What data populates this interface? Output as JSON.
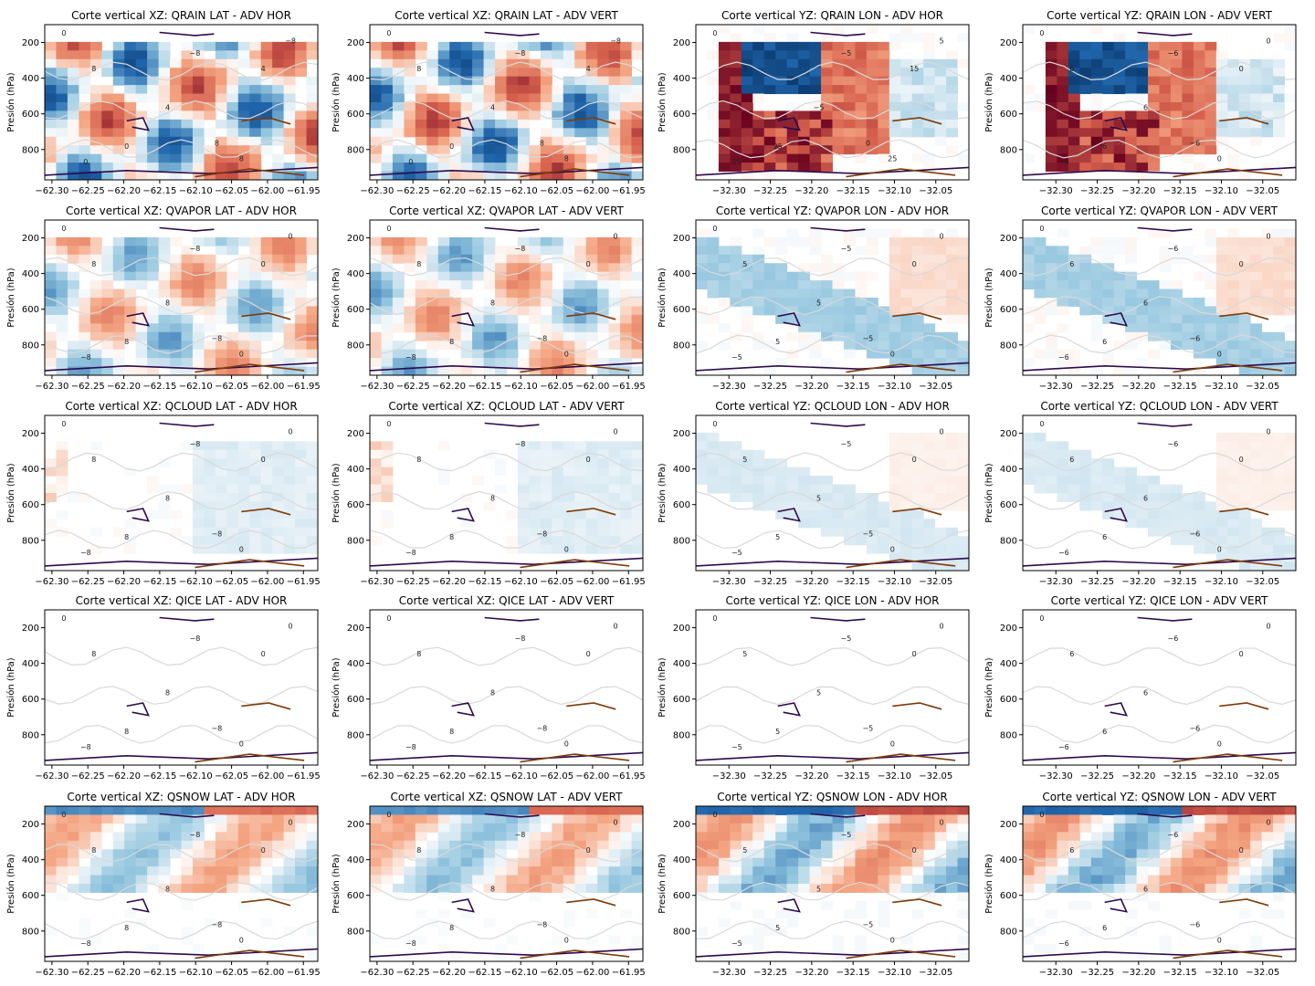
{
  "figure": {
    "rows": 5,
    "cols": 4
  },
  "colors": {
    "heatmap_cmap": "RdBu_r",
    "contour_positive": "#2d0a4e",
    "contour_negative": "#7f3b08",
    "contour_zero": "#d9d9d9",
    "axis": "#000000"
  },
  "chart_data": [
    {
      "type": "heatmap",
      "title": "Corte vertical XZ: QRAIN LAT - ADV HOR",
      "xlabel": "",
      "ylabel": "Presión (hPa)",
      "xlim": [
        -62.31,
        -61.93
      ],
      "ylim": [
        970,
        100
      ],
      "x_ticks": [
        "−62.30",
        "−62.25",
        "−62.20",
        "−62.15",
        "−62.10",
        "−62.05",
        "−62.00",
        "−61.95"
      ],
      "y_ticks": [
        "200",
        "400",
        "600",
        "800"
      ],
      "intensity": 0.9,
      "pattern": "mixed",
      "contours": [
        "0",
        "8",
        "−8",
        "4"
      ],
      "grid": false
    },
    {
      "type": "heatmap",
      "title": "Corte vertical XZ: QRAIN LAT - ADV VERT",
      "xlabel": "",
      "ylabel": "Presión (hPa)",
      "xlim": [
        -62.31,
        -61.93
      ],
      "ylim": [
        970,
        100
      ],
      "x_ticks": [
        "−62.30",
        "−62.25",
        "−62.20",
        "−62.15",
        "−62.10",
        "−62.05",
        "−62.00",
        "−61.95"
      ],
      "y_ticks": [
        "200",
        "400",
        "600",
        "800"
      ],
      "intensity": 0.9,
      "pattern": "mixed",
      "contours": [
        "0",
        "8",
        "−8",
        "4"
      ],
      "grid": false
    },
    {
      "type": "heatmap",
      "title": "Corte vertical YZ: QRAIN LON - ADV HOR",
      "xlabel": "",
      "ylabel": "Presión (hPa)",
      "xlim": [
        -32.34,
        -32.01
      ],
      "ylim": [
        970,
        100
      ],
      "x_ticks": [
        "−32.30",
        "−32.25",
        "−32.20",
        "−32.15",
        "−32.10",
        "−32.05"
      ],
      "y_ticks": [
        "200",
        "400",
        "600",
        "800"
      ],
      "intensity": 1.0,
      "pattern": "core",
      "contours": [
        "0",
        "5",
        "−5",
        "15",
        "25"
      ],
      "grid": false
    },
    {
      "type": "heatmap",
      "title": "Corte vertical YZ: QRAIN LON - ADV VERT",
      "xlabel": "",
      "ylabel": "Presión (hPa)",
      "xlim": [
        -32.34,
        -32.01
      ],
      "ylim": [
        970,
        100
      ],
      "x_ticks": [
        "−32.30",
        "−32.25",
        "−32.20",
        "−32.15",
        "−32.10",
        "−32.05"
      ],
      "y_ticks": [
        "200",
        "400",
        "600",
        "800"
      ],
      "intensity": 1.0,
      "pattern": "core",
      "contours": [
        "0",
        "6",
        "−6"
      ],
      "grid": false
    },
    {
      "type": "heatmap",
      "title": "Corte vertical XZ: QVAPOR LAT - ADV HOR",
      "xlabel": "",
      "ylabel": "Presión (hPa)",
      "xlim": [
        -62.31,
        -61.93
      ],
      "ylim": [
        970,
        100
      ],
      "x_ticks": [
        "−62.30",
        "−62.25",
        "−62.20",
        "−62.15",
        "−62.10",
        "−62.05",
        "−62.00",
        "−61.95"
      ],
      "y_ticks": [
        "200",
        "400",
        "600",
        "800"
      ],
      "intensity": 0.55,
      "pattern": "mixed",
      "contours": [
        "0",
        "8",
        "−8"
      ],
      "grid": false
    },
    {
      "type": "heatmap",
      "title": "Corte vertical XZ: QVAPOR LAT - ADV VERT",
      "xlabel": "",
      "ylabel": "Presión (hPa)",
      "xlim": [
        -62.31,
        -61.93
      ],
      "ylim": [
        970,
        100
      ],
      "x_ticks": [
        "−62.30",
        "−62.25",
        "−62.20",
        "−62.15",
        "−62.10",
        "−62.05",
        "−62.00",
        "−61.95"
      ],
      "y_ticks": [
        "200",
        "400",
        "600",
        "800"
      ],
      "intensity": 0.55,
      "pattern": "mixed",
      "contours": [
        "0",
        "8",
        "−8"
      ],
      "grid": false
    },
    {
      "type": "heatmap",
      "title": "Corte vertical YZ: QVAPOR LON - ADV HOR",
      "xlabel": "",
      "ylabel": "Presión (hPa)",
      "xlim": [
        -32.34,
        -32.01
      ],
      "ylim": [
        970,
        100
      ],
      "x_ticks": [
        "−32.30",
        "−32.25",
        "−32.20",
        "−32.15",
        "−32.10",
        "−32.05"
      ],
      "y_ticks": [
        "200",
        "400",
        "600",
        "800"
      ],
      "intensity": 0.5,
      "pattern": "diag",
      "contours": [
        "0",
        "5",
        "−5"
      ],
      "grid": false
    },
    {
      "type": "heatmap",
      "title": "Corte vertical YZ: QVAPOR LON - ADV VERT",
      "xlabel": "",
      "ylabel": "Presión (hPa)",
      "xlim": [
        -32.34,
        -32.01
      ],
      "ylim": [
        970,
        100
      ],
      "x_ticks": [
        "−32.30",
        "−32.25",
        "−32.20",
        "−32.15",
        "−32.10",
        "−32.05"
      ],
      "y_ticks": [
        "200",
        "400",
        "600",
        "800"
      ],
      "intensity": 0.5,
      "pattern": "diag",
      "contours": [
        "0",
        "6",
        "−6"
      ],
      "grid": false
    },
    {
      "type": "heatmap",
      "title": "Corte vertical XZ: QCLOUD LAT - ADV HOR",
      "xlabel": "",
      "ylabel": "Presión (hPa)",
      "xlim": [
        -62.31,
        -61.93
      ],
      "ylim": [
        970,
        100
      ],
      "x_ticks": [
        "−62.30",
        "−62.25",
        "−62.20",
        "−62.15",
        "−62.10",
        "−62.05",
        "−62.00",
        "−61.95"
      ],
      "y_ticks": [
        "200",
        "400",
        "600",
        "800"
      ],
      "intensity": 0.35,
      "pattern": "right",
      "contours": [
        "0",
        "8",
        "−8"
      ],
      "grid": false
    },
    {
      "type": "heatmap",
      "title": "Corte vertical XZ: QCLOUD LAT - ADV VERT",
      "xlabel": "",
      "ylabel": "Presión (hPa)",
      "xlim": [
        -62.31,
        -61.93
      ],
      "ylim": [
        970,
        100
      ],
      "x_ticks": [
        "−62.30",
        "−62.25",
        "−62.20",
        "−62.15",
        "−62.10",
        "−62.05",
        "−62.00",
        "−61.95"
      ],
      "y_ticks": [
        "200",
        "400",
        "600",
        "800"
      ],
      "intensity": 0.35,
      "pattern": "right",
      "contours": [
        "0",
        "8",
        "−8"
      ],
      "grid": false
    },
    {
      "type": "heatmap",
      "title": "Corte vertical YZ: QCLOUD LON - ADV HOR",
      "xlabel": "",
      "ylabel": "Presión (hPa)",
      "xlim": [
        -32.34,
        -32.01
      ],
      "ylim": [
        970,
        100
      ],
      "x_ticks": [
        "−32.30",
        "−32.25",
        "−32.20",
        "−32.15",
        "−32.10",
        "−32.05"
      ],
      "y_ticks": [
        "200",
        "400",
        "600",
        "800"
      ],
      "intensity": 0.25,
      "pattern": "diag",
      "contours": [
        "0",
        "5",
        "−5"
      ],
      "grid": false
    },
    {
      "type": "heatmap",
      "title": "Corte vertical YZ: QCLOUD LON - ADV VERT",
      "xlabel": "",
      "ylabel": "Presión (hPa)",
      "xlim": [
        -32.34,
        -32.01
      ],
      "ylim": [
        970,
        100
      ],
      "x_ticks": [
        "−32.30",
        "−32.25",
        "−32.20",
        "−32.15",
        "−32.10",
        "−32.05"
      ],
      "y_ticks": [
        "200",
        "400",
        "600",
        "800"
      ],
      "intensity": 0.25,
      "pattern": "diag",
      "contours": [
        "0",
        "6",
        "−6"
      ],
      "grid": false
    },
    {
      "type": "heatmap",
      "title": "Corte vertical XZ: QICE LAT - ADV HOR",
      "xlabel": "",
      "ylabel": "Presión (hPa)",
      "xlim": [
        -62.31,
        -61.93
      ],
      "ylim": [
        970,
        100
      ],
      "x_ticks": [
        "−62.30",
        "−62.25",
        "−62.20",
        "−62.15",
        "−62.10",
        "−62.05",
        "−62.00",
        "−61.95"
      ],
      "y_ticks": [
        "200",
        "400",
        "600",
        "800"
      ],
      "intensity": 0,
      "pattern": "none",
      "contours": [
        "0",
        "8",
        "−8"
      ],
      "grid": false
    },
    {
      "type": "heatmap",
      "title": "Corte vertical XZ: QICE LAT - ADV VERT",
      "xlabel": "",
      "ylabel": "Presión (hPa)",
      "xlim": [
        -62.31,
        -61.93
      ],
      "ylim": [
        970,
        100
      ],
      "x_ticks": [
        "−62.30",
        "−62.25",
        "−62.20",
        "−62.15",
        "−62.10",
        "−62.05",
        "−62.00",
        "−61.95"
      ],
      "y_ticks": [
        "200",
        "400",
        "600",
        "800"
      ],
      "intensity": 0,
      "pattern": "none",
      "contours": [
        "0",
        "8",
        "−8"
      ],
      "grid": false
    },
    {
      "type": "heatmap",
      "title": "Corte vertical YZ: QICE LON - ADV HOR",
      "xlabel": "",
      "ylabel": "Presión (hPa)",
      "xlim": [
        -32.34,
        -32.01
      ],
      "ylim": [
        970,
        100
      ],
      "x_ticks": [
        "−32.30",
        "−32.25",
        "−32.20",
        "−32.15",
        "−32.10",
        "−32.05"
      ],
      "y_ticks": [
        "200",
        "400",
        "600",
        "800"
      ],
      "intensity": 0,
      "pattern": "none",
      "contours": [
        "0",
        "5",
        "−5"
      ],
      "grid": false
    },
    {
      "type": "heatmap",
      "title": "Corte vertical YZ: QICE LON - ADV VERT",
      "xlabel": "",
      "ylabel": "Presión (hPa)",
      "xlim": [
        -32.34,
        -32.01
      ],
      "ylim": [
        970,
        100
      ],
      "x_ticks": [
        "−32.30",
        "−32.25",
        "−32.20",
        "−32.15",
        "−32.10",
        "−32.05"
      ],
      "y_ticks": [
        "200",
        "400",
        "600",
        "800"
      ],
      "intensity": 0,
      "pattern": "none",
      "contours": [
        "0",
        "6",
        "−6"
      ],
      "grid": false
    },
    {
      "type": "heatmap",
      "title": "Corte vertical XZ: QSNOW LAT - ADV HOR",
      "xlabel": "",
      "ylabel": "Presión (hPa)",
      "xlim": [
        -62.31,
        -61.93
      ],
      "ylim": [
        970,
        100
      ],
      "x_ticks": [
        "−62.30",
        "−62.25",
        "−62.20",
        "−62.15",
        "−62.10",
        "−62.05",
        "−62.00",
        "−61.95"
      ],
      "y_ticks": [
        "200",
        "400",
        "600",
        "800"
      ],
      "intensity": 0.6,
      "pattern": "upper",
      "contours": [
        "0",
        "8",
        "−8"
      ],
      "grid": false
    },
    {
      "type": "heatmap",
      "title": "Corte vertical XZ: QSNOW LAT - ADV VERT",
      "xlabel": "",
      "ylabel": "Presión (hPa)",
      "xlim": [
        -62.31,
        -61.93
      ],
      "ylim": [
        970,
        100
      ],
      "x_ticks": [
        "−62.30",
        "−62.25",
        "−62.20",
        "−62.15",
        "−62.10",
        "−62.05",
        "−62.00",
        "−61.95"
      ],
      "y_ticks": [
        "200",
        "400",
        "600",
        "800"
      ],
      "intensity": 0.6,
      "pattern": "upper",
      "contours": [
        "0",
        "8",
        "−8"
      ],
      "grid": false
    },
    {
      "type": "heatmap",
      "title": "Corte vertical YZ: QSNOW LON - ADV HOR",
      "xlabel": "",
      "ylabel": "Presión (hPa)",
      "xlim": [
        -32.34,
        -32.01
      ],
      "ylim": [
        970,
        100
      ],
      "x_ticks": [
        "−32.30",
        "−32.25",
        "−32.20",
        "−32.15",
        "−32.10",
        "−32.05"
      ],
      "y_ticks": [
        "200",
        "400",
        "600",
        "800"
      ],
      "intensity": 0.75,
      "pattern": "upper",
      "contours": [
        "0",
        "5",
        "−5"
      ],
      "grid": false
    },
    {
      "type": "heatmap",
      "title": "Corte vertical YZ: QSNOW LON - ADV VERT",
      "xlabel": "",
      "ylabel": "Presión (hPa)",
      "xlim": [
        -32.34,
        -32.01
      ],
      "ylim": [
        970,
        100
      ],
      "x_ticks": [
        "−32.30",
        "−32.25",
        "−32.20",
        "−32.15",
        "−32.10",
        "−32.05"
      ],
      "y_ticks": [
        "200",
        "400",
        "600",
        "800"
      ],
      "intensity": 0.75,
      "pattern": "upper",
      "contours": [
        "0",
        "6",
        "−6"
      ],
      "grid": false
    }
  ]
}
